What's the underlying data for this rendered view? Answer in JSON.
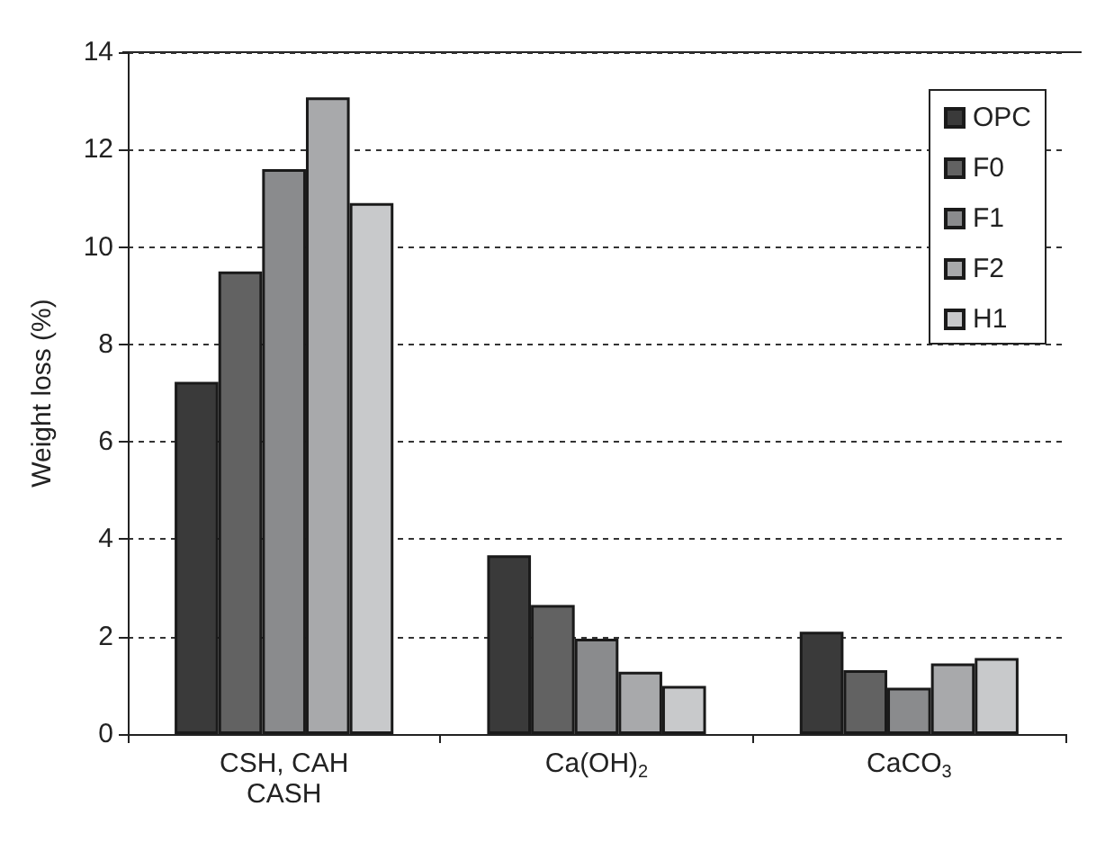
{
  "chart_data": {
    "type": "bar",
    "ylabel": "Weight loss (%)",
    "categories": [
      "CSH, CAH\nCASH",
      "Ca(OH)$_{2}$",
      "CaCO$_{3}$"
    ],
    "series": [
      {
        "name": "OPC",
        "color": "#3a3a3a",
        "values": [
          7.23,
          3.67,
          2.1
        ]
      },
      {
        "name": "F0",
        "color": "#626262",
        "values": [
          9.5,
          2.65,
          1.31
        ]
      },
      {
        "name": "F1",
        "color": "#8a8b8d",
        "values": [
          11.6,
          1.96,
          0.95
        ]
      },
      {
        "name": "F2",
        "color": "#a8a9ab",
        "values": [
          13.07,
          1.28,
          1.45
        ]
      },
      {
        "name": "H1",
        "color": "#c8c9cb",
        "values": [
          10.9,
          0.99,
          1.56
        ]
      }
    ],
    "ylim": [
      0,
      14
    ],
    "yticks": [
      0,
      2,
      4,
      6,
      8,
      10,
      12,
      14
    ],
    "grid": "y",
    "legend": "top right"
  }
}
